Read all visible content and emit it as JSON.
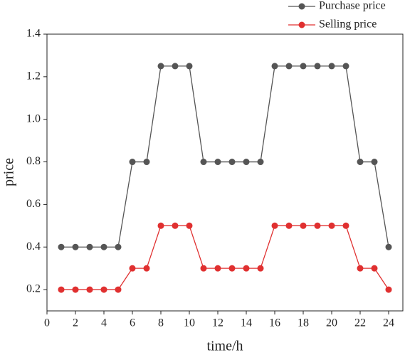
{
  "chart_data": {
    "type": "line",
    "x_label": "time/h",
    "y_label": "price",
    "x": [
      1,
      2,
      3,
      4,
      5,
      6,
      7,
      8,
      9,
      10,
      11,
      12,
      13,
      14,
      15,
      16,
      17,
      18,
      19,
      20,
      21,
      22,
      23,
      24
    ],
    "series": [
      {
        "name": "Purchase price",
        "color": "#555555",
        "values": [
          0.4,
          0.4,
          0.4,
          0.4,
          0.4,
          0.8,
          0.8,
          1.25,
          1.25,
          1.25,
          0.8,
          0.8,
          0.8,
          0.8,
          0.8,
          1.25,
          1.25,
          1.25,
          1.25,
          1.25,
          1.25,
          0.8,
          0.8,
          0.4
        ]
      },
      {
        "name": "Selling price",
        "color": "#e03030",
        "values": [
          0.2,
          0.2,
          0.2,
          0.2,
          0.2,
          0.3,
          0.3,
          0.5,
          0.5,
          0.5,
          0.3,
          0.3,
          0.3,
          0.3,
          0.3,
          0.5,
          0.5,
          0.5,
          0.5,
          0.5,
          0.5,
          0.3,
          0.3,
          0.2
        ]
      }
    ],
    "xlim": [
      0,
      25
    ],
    "xticks": [
      0,
      2,
      4,
      6,
      8,
      10,
      12,
      14,
      16,
      18,
      20,
      22,
      24
    ],
    "ylim": [
      0.1,
      1.4
    ],
    "yticks": [
      0.2,
      0.4,
      0.6,
      0.8,
      {
        "value": 1,
        "label": "1.0"
      },
      1.2,
      1.4
    ]
  }
}
